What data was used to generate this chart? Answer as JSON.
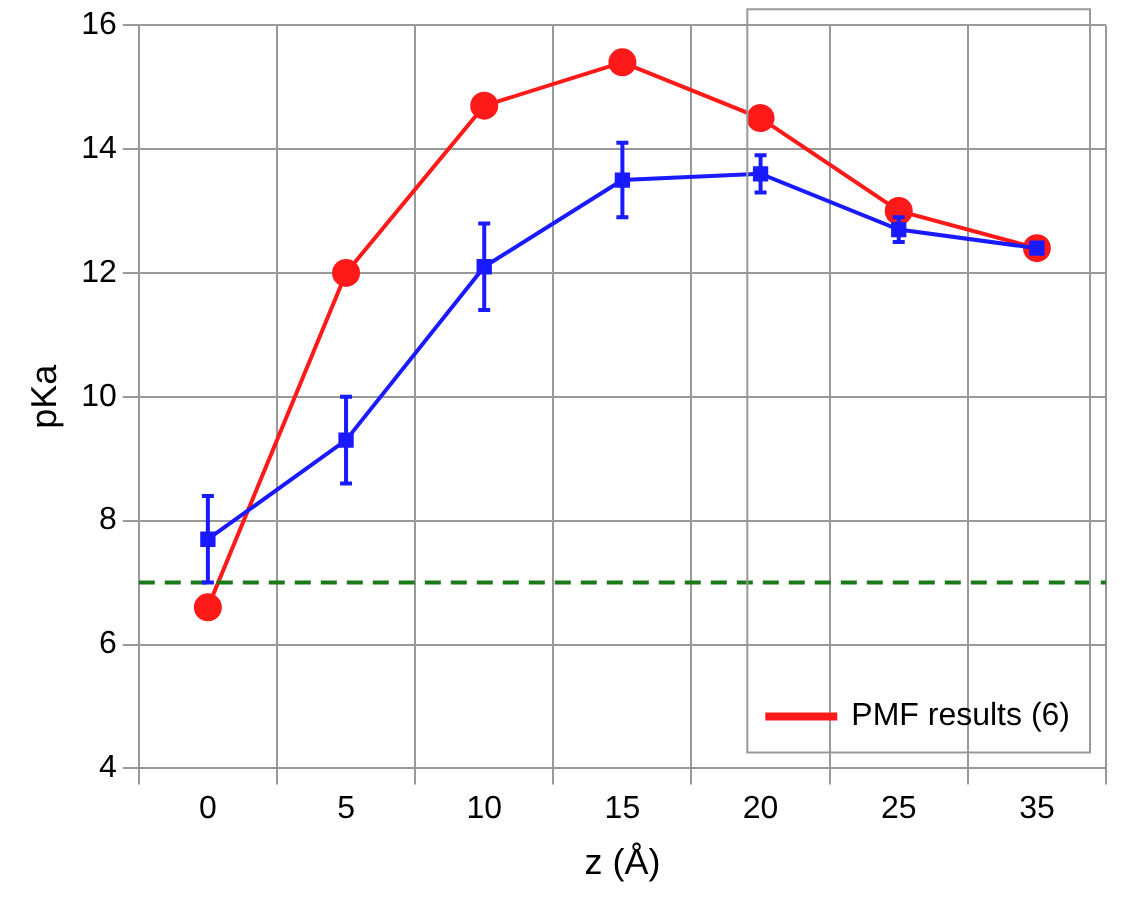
{
  "chart_data": {
    "type": "line",
    "xlabel": "z (Å)",
    "ylabel": "pKa",
    "categories": [
      "0",
      "5",
      "10",
      "15",
      "20",
      "25",
      "35"
    ],
    "series": [
      {
        "color": "#1a1aff",
        "marker": "square",
        "values": [
          7.7,
          9.3,
          12.1,
          13.5,
          13.6,
          12.7,
          12.4
        ],
        "errors": [
          0.7,
          0.7,
          0.7,
          0.6,
          0.3,
          0.2,
          null
        ]
      },
      {
        "name": "PMF results (6)",
        "color": "#ff1a1a",
        "marker": "circle",
        "values": [
          6.6,
          12.0,
          14.7,
          15.4,
          14.5,
          13.0,
          12.4
        ]
      }
    ],
    "ylim": [
      4,
      16
    ],
    "yticks": [
      4,
      6,
      8,
      10,
      12,
      14,
      16
    ],
    "grid": true,
    "legend": "bottom right",
    "ref_lines": [
      {
        "axis": "y",
        "value": 7,
        "color": "#1a7a1a",
        "line_style": "dashed"
      }
    ]
  }
}
